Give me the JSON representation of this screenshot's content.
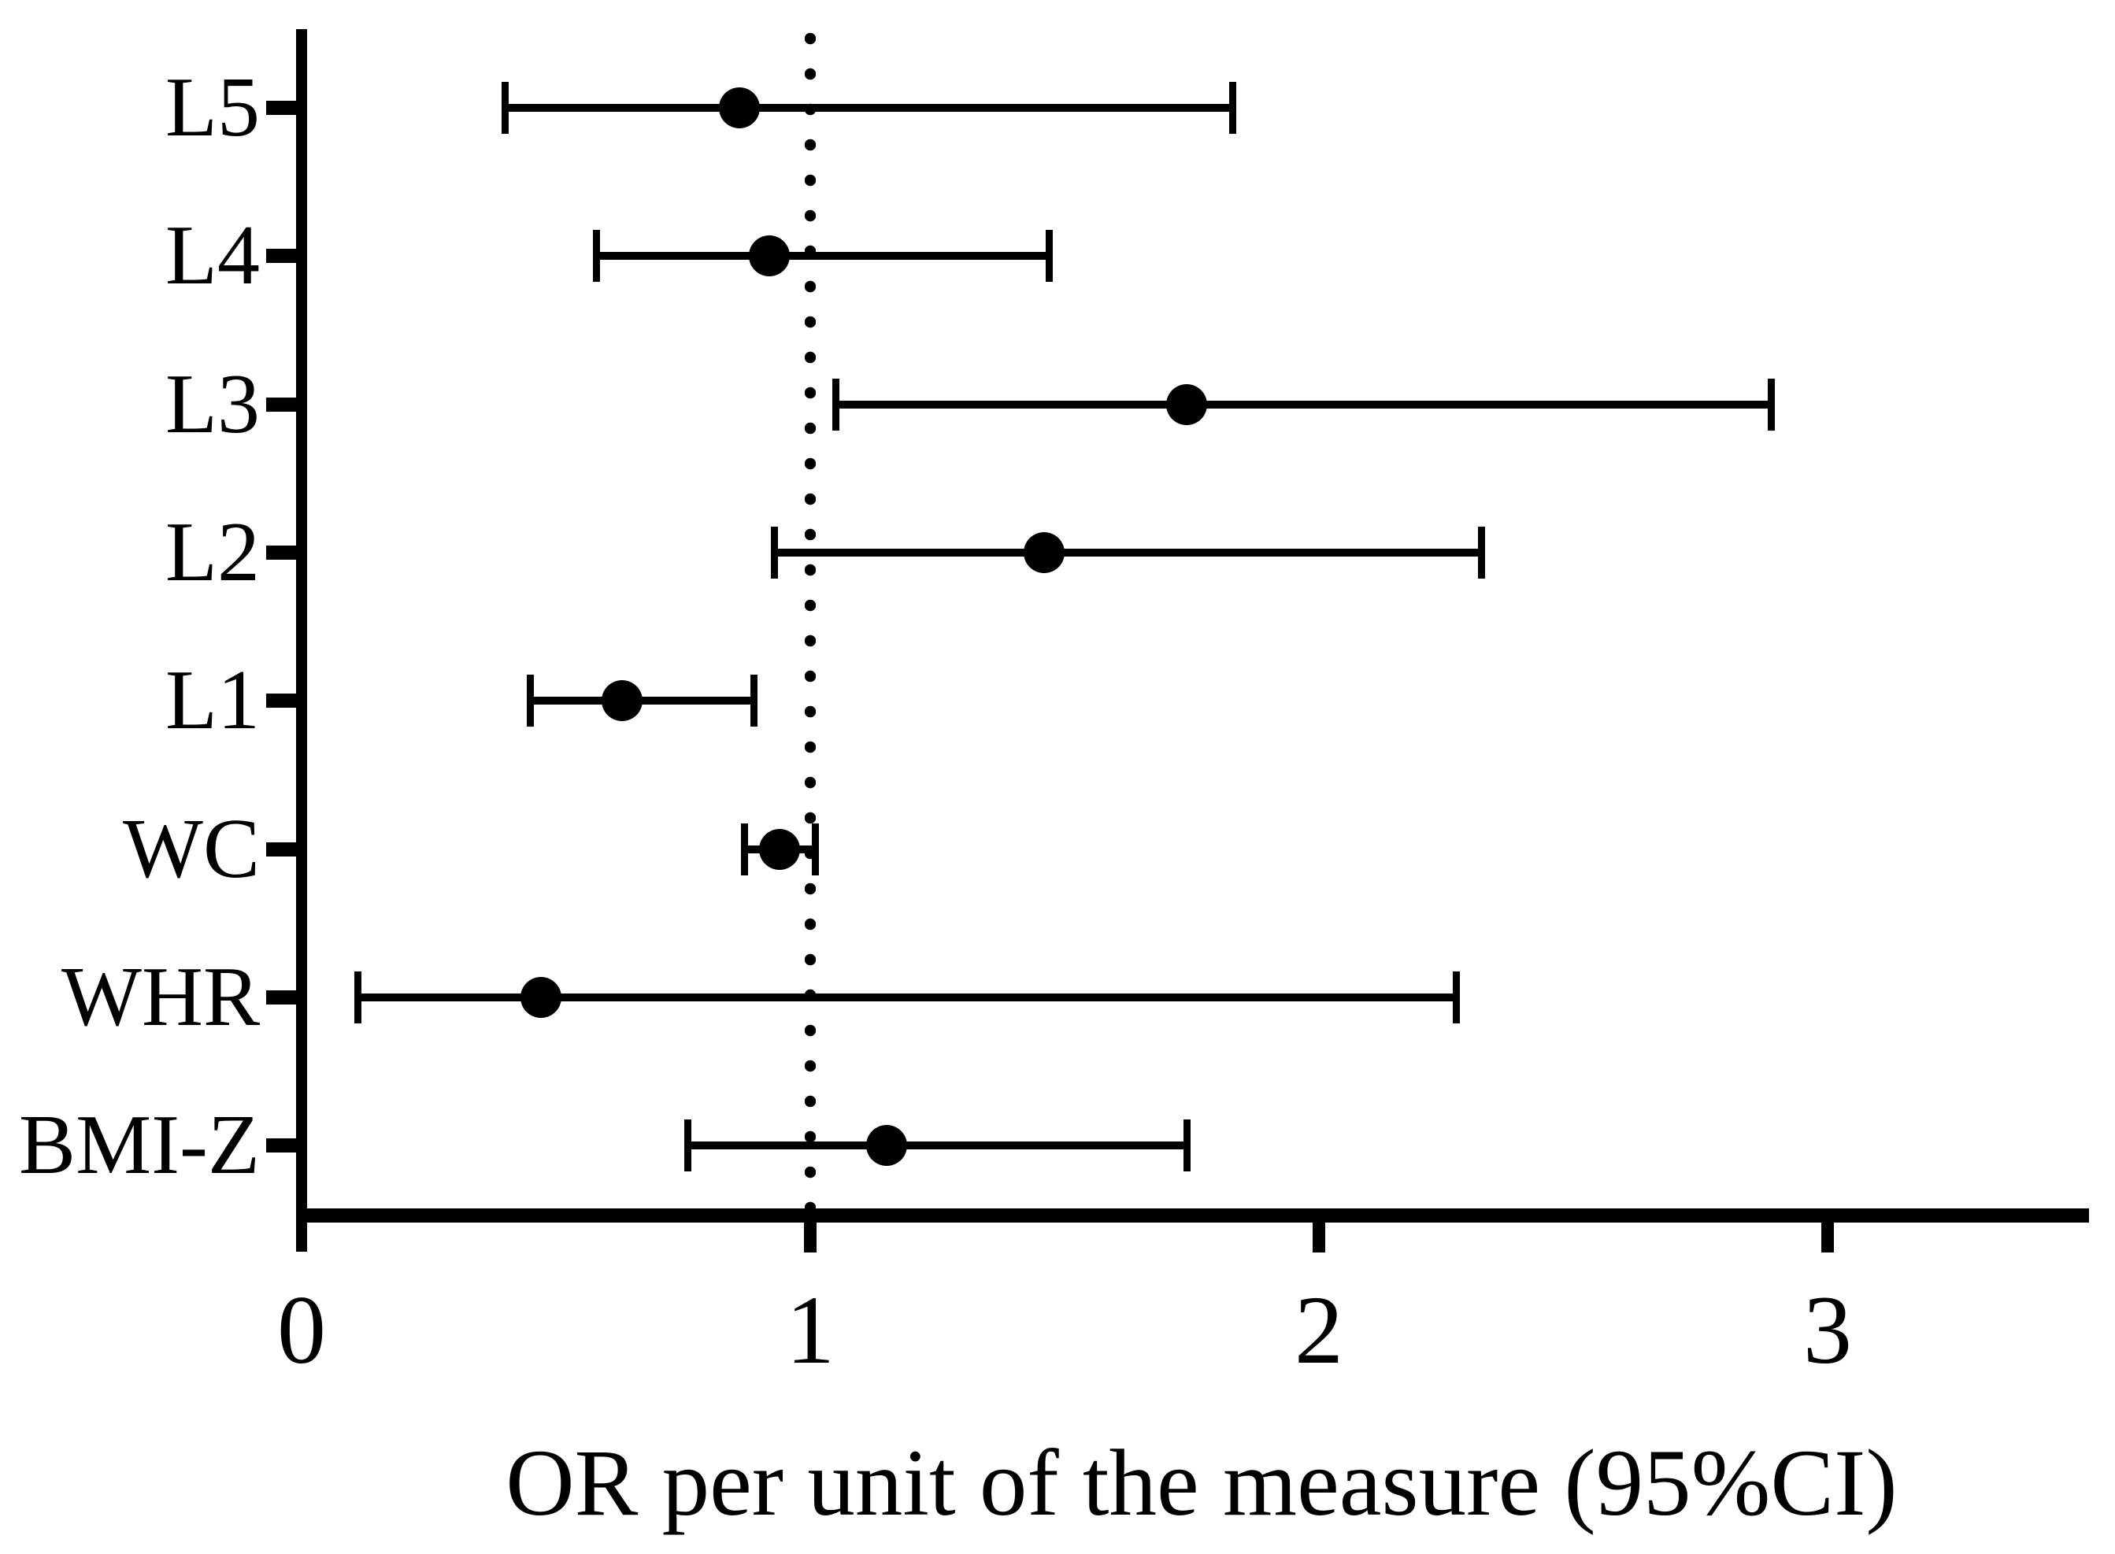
{
  "chart_data": {
    "type": "scatter",
    "variant": "forest-plot",
    "title": "",
    "xlabel": "OR per unit of the measure (95%CI)",
    "ylabel": "",
    "categories": [
      "L5",
      "L4",
      "L3",
      "L2",
      "L1",
      "WC",
      "WHR",
      "BMI-Z"
    ],
    "series": [
      {
        "name": "OR (95% CI)",
        "values": [
          0.86,
          0.92,
          1.74,
          1.46,
          0.63,
          0.94,
          0.47,
          1.15
        ],
        "ci_low": [
          0.4,
          0.58,
          1.05,
          0.93,
          0.45,
          0.87,
          0.11,
          0.76
        ],
        "ci_high": [
          1.83,
          1.47,
          2.89,
          2.32,
          0.89,
          1.01,
          2.27,
          1.74
        ]
      }
    ],
    "x_ticks": [
      "0",
      "1",
      "2",
      "3"
    ],
    "x_tick_values": [
      0,
      1,
      2,
      3
    ],
    "xlim": [
      0,
      3.51
    ],
    "reference_line_x": 1,
    "reference_line_style": "dotted",
    "grid": "off",
    "legend": "none",
    "marker": "filled-circle",
    "colors": {
      "foreground": "#000000",
      "background": "#ffffff"
    }
  }
}
